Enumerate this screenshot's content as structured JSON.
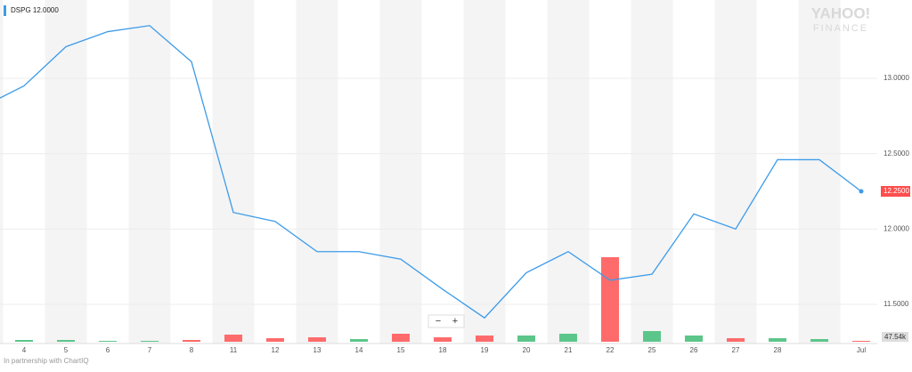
{
  "chart_data": {
    "type": "line",
    "legend": "DSPG 12.0000",
    "watermark": [
      "YAHOO!",
      "FINANCE"
    ],
    "footer": "In partnership with ChartIQ",
    "zoom_buttons": [
      "−",
      "+"
    ],
    "current_price_label": "12.2500",
    "current_volume_label": "47.54k",
    "categories": [
      null,
      "4",
      "5",
      "6",
      "7",
      "8",
      "11",
      "12",
      "13",
      "14",
      "15",
      "18",
      "19",
      "20",
      "21",
      "22",
      "25",
      "26",
      "27",
      "28",
      null,
      "Jul"
    ],
    "series": [
      {
        "name": "DSPG",
        "color": "#3d9be9",
        "values": [
          12.81,
          12.95,
          13.21,
          13.31,
          13.35,
          13.11,
          12.11,
          12.05,
          11.85,
          11.85,
          11.8,
          11.6,
          11.41,
          11.71,
          11.85,
          11.66,
          11.7,
          12.1,
          12.0,
          12.46,
          12.46,
          12.25
        ]
      }
    ],
    "volume": {
      "values": [
        10,
        10,
        10,
        5,
        5,
        10,
        40,
        20,
        25,
        15,
        45,
        25,
        35,
        35,
        45,
        475,
        60,
        35,
        20,
        20,
        15,
        5
      ],
      "colors": [
        "#5cc68a",
        "#5cc68a",
        "#5cc68a",
        "#5cc68a",
        "#5cc68a",
        "#ff6b6b",
        "#ff6b6b",
        "#ff6b6b",
        "#ff6b6b",
        "#5cc68a",
        "#ff6b6b",
        "#ff6b6b",
        "#ff6b6b",
        "#5cc68a",
        "#5cc68a",
        "#ff6b6b",
        "#5cc68a",
        "#5cc68a",
        "#ff6b6b",
        "#5cc68a",
        "#5cc68a",
        "#ff6b6b"
      ],
      "ylim": [
        0,
        500
      ]
    },
    "ylim": [
      11.24,
      13.52
    ],
    "yticks": [
      {
        "value": 11.5,
        "label": "11.5000"
      },
      {
        "value": 12,
        "label": "12.0000"
      },
      {
        "value": 12.5,
        "label": "12.5000"
      },
      {
        "value": 13,
        "label": "13.0000"
      }
    ],
    "grid": true
  }
}
